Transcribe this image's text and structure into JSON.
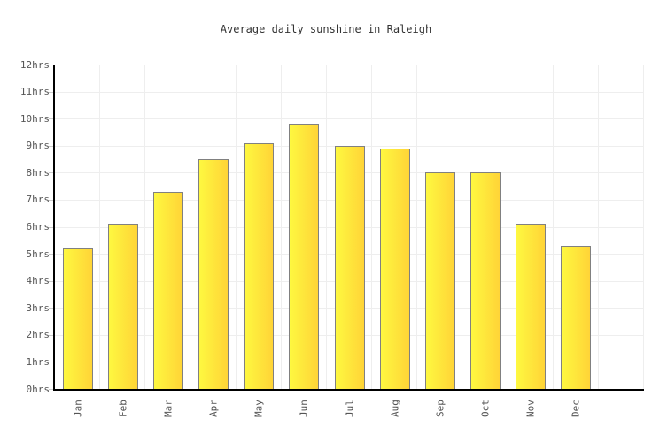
{
  "title": "Average daily sunshine in Raleigh",
  "chart_data": {
    "type": "bar",
    "title": "Average daily sunshine in Raleigh",
    "categories": [
      "Jan",
      "Feb",
      "Mar",
      "Apr",
      "May",
      "Jun",
      "Jul",
      "Aug",
      "Sep",
      "Oct",
      "Nov",
      "Dec"
    ],
    "values": [
      5.2,
      6.1,
      7.3,
      8.5,
      9.1,
      9.8,
      9.0,
      8.9,
      8.0,
      8.0,
      6.1,
      5.3
    ],
    "xlabel": "",
    "ylabel": "",
    "ylim": [
      0,
      12
    ],
    "y_tick_step": 1,
    "y_tick_labels": [
      "0hrs",
      "1hrs",
      "2hrs",
      "3hrs",
      "4hrs",
      "5hrs",
      "6hrs",
      "7hrs",
      "8hrs",
      "9hrs",
      "10hrs",
      "11hrs",
      "12hrs"
    ],
    "grid": true,
    "legend_position": "none",
    "colors": {
      "bar_gradient_left": "#fef840",
      "bar_gradient_right": "#ffd437",
      "bar_border": "#808080",
      "gridline": "#eeeeee",
      "tick_stub": "#cccccc",
      "axis": "#000000",
      "title_text": "#333333",
      "label_text": "#555555",
      "background": "#ffffff"
    }
  }
}
